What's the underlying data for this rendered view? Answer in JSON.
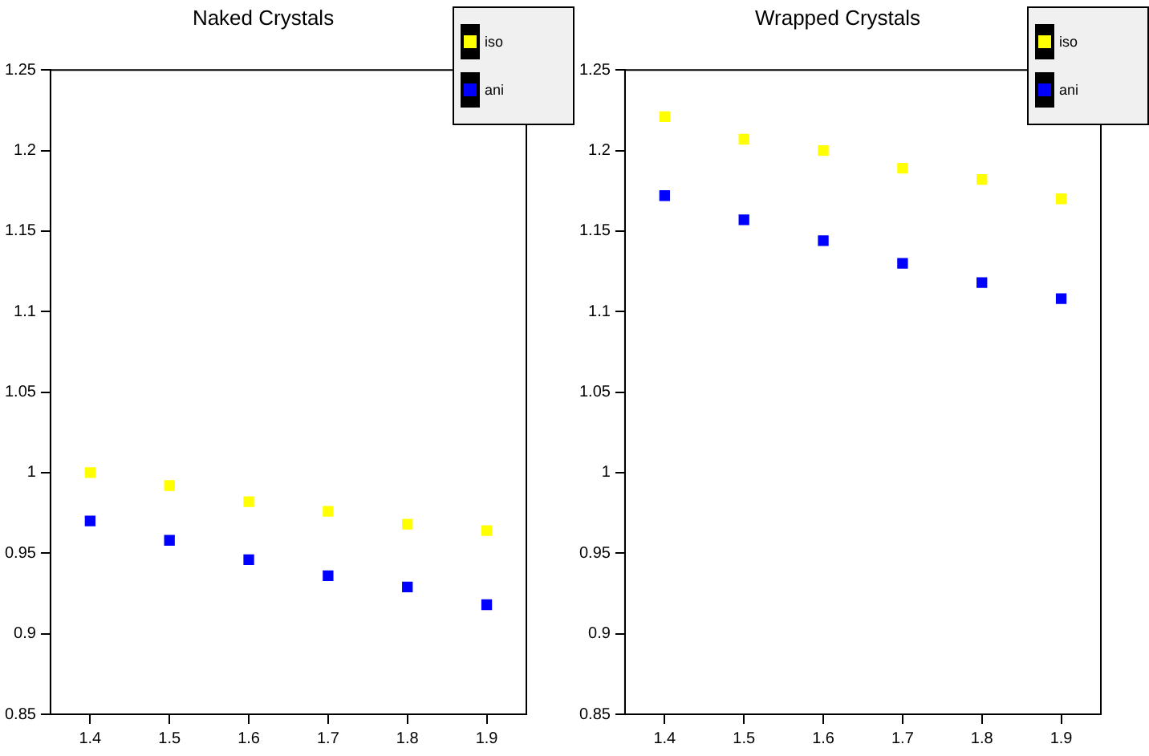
{
  "chart_data": [
    {
      "type": "scatter",
      "title": "Naked Crystals",
      "x": [
        1.4,
        1.5,
        1.6,
        1.7,
        1.8,
        1.9
      ],
      "series": [
        {
          "name": "iso",
          "color": "#ffff00",
          "values": [
            1.0,
            0.992,
            0.982,
            0.976,
            0.968,
            0.964
          ]
        },
        {
          "name": "ani",
          "color": "#0000ff",
          "values": [
            0.97,
            0.958,
            0.946,
            0.936,
            0.929,
            0.918
          ]
        }
      ],
      "xlim": [
        1.35,
        1.95
      ],
      "xticks": [
        1.4,
        1.5,
        1.6,
        1.7,
        1.8,
        1.9
      ],
      "ylim": [
        0.85,
        1.25
      ],
      "yticks": [
        0.85,
        0.9,
        0.95,
        1,
        1.05,
        1.1,
        1.15,
        1.2,
        1.25
      ],
      "marker": "square",
      "legend": "top right",
      "grid": false
    },
    {
      "type": "scatter",
      "title": "Wrapped Crystals",
      "x": [
        1.4,
        1.5,
        1.6,
        1.7,
        1.8,
        1.9
      ],
      "series": [
        {
          "name": "iso",
          "color": "#ffff00",
          "values": [
            1.221,
            1.207,
            1.2,
            1.189,
            1.182,
            1.17
          ]
        },
        {
          "name": "ani",
          "color": "#0000ff",
          "values": [
            1.172,
            1.157,
            1.144,
            1.13,
            1.118,
            1.108
          ]
        }
      ],
      "xlim": [
        1.35,
        1.95
      ],
      "xticks": [
        1.4,
        1.5,
        1.6,
        1.7,
        1.8,
        1.9
      ],
      "ylim": [
        0.85,
        1.25
      ],
      "yticks": [
        0.85,
        0.9,
        0.95,
        1,
        1.05,
        1.1,
        1.15,
        1.2,
        1.25
      ],
      "marker": "square",
      "legend": "top right",
      "grid": false
    }
  ]
}
